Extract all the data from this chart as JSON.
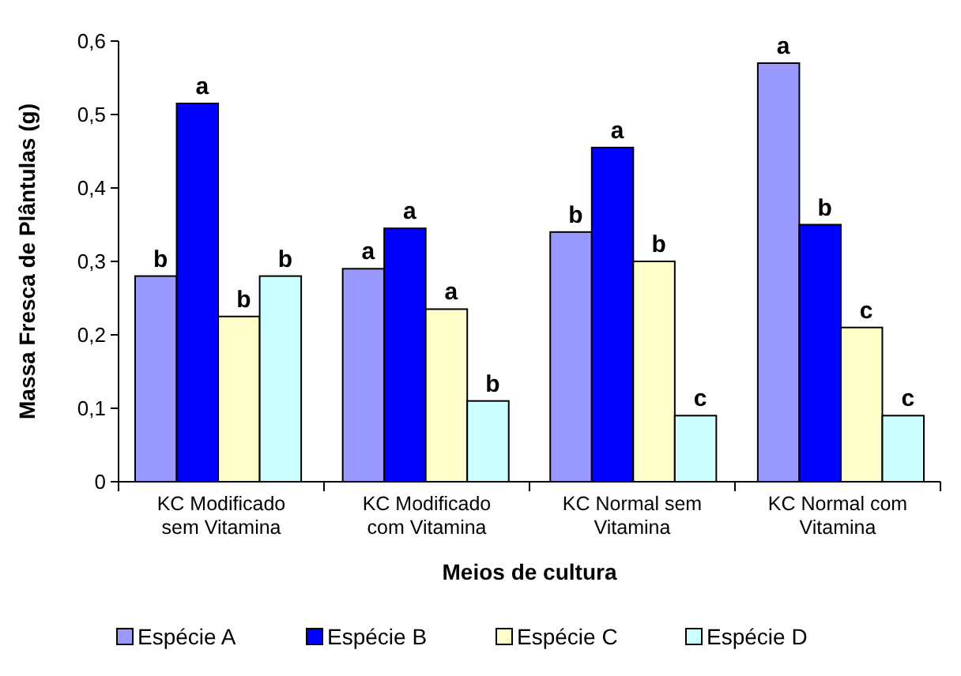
{
  "chart_data": {
    "type": "bar",
    "xlabel": "Meios de cultura",
    "ylabel": "Massa Fresca de Plântulas (g)",
    "categories": [
      "KC Modificado sem Vitamina",
      "KC Modificado com Vitamina",
      "KC Normal sem Vitamina",
      "KC Normal com Vitamina"
    ],
    "ylim": [
      0,
      0.6
    ],
    "yticks": [
      {
        "value": 0,
        "label": "0"
      },
      {
        "value": 0.1,
        "label": "0,1"
      },
      {
        "value": 0.2,
        "label": "0,2"
      },
      {
        "value": 0.3,
        "label": "0,3"
      },
      {
        "value": 0.4,
        "label": "0,4"
      },
      {
        "value": 0.5,
        "label": "0,5"
      },
      {
        "value": 0.6,
        "label": "0,6"
      }
    ],
    "series": [
      {
        "name": "Espécie A",
        "color": "#9999ff",
        "values": [
          0.28,
          0.29,
          0.34,
          0.57
        ],
        "value_labels": [
          "b",
          "a",
          "b",
          "a"
        ]
      },
      {
        "name": "Espécie B",
        "color": "#0000ff",
        "values": [
          0.515,
          0.345,
          0.455,
          0.35
        ],
        "value_labels": [
          "a",
          "a",
          "a",
          "b"
        ]
      },
      {
        "name": "Espécie C",
        "color": "#ffffcc",
        "values": [
          0.225,
          0.235,
          0.3,
          0.21
        ],
        "value_labels": [
          "b",
          "a",
          "b",
          "c"
        ]
      },
      {
        "name": "Espécie D",
        "color": "#ccffff",
        "values": [
          0.28,
          0.11,
          0.09,
          0.09
        ],
        "value_labels": [
          "b",
          "b",
          "c",
          "c"
        ]
      }
    ],
    "grid": false,
    "legend": "bottom"
  }
}
